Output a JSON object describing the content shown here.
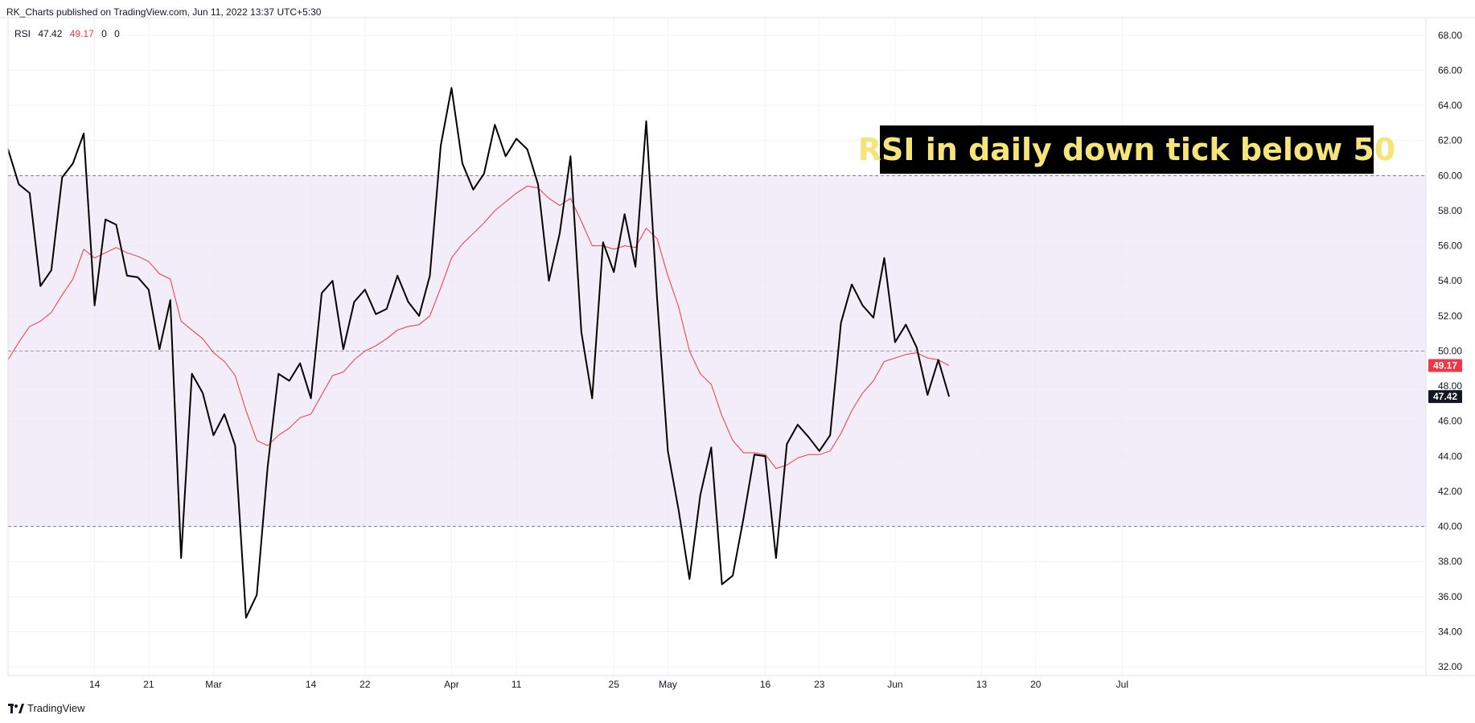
{
  "header": {
    "published": "RK_Charts published on TradingView.com, Jun 11, 2022 13:37 UTC+5:30"
  },
  "legend": {
    "name": "RSI",
    "rsi_value": "47.42",
    "ma_value": "49.17",
    "extra1": "0",
    "extra2": "0"
  },
  "annotation": {
    "text": "RSI in daily down tick below 50"
  },
  "footer": {
    "brand": "TradingView"
  },
  "colors": {
    "rsi_line": "#000000",
    "ma_line": "#f23645",
    "band_fill": "#ede7f6",
    "annotation_bg": "#000000",
    "annotation_text": "#f5e47a"
  },
  "chart_data": {
    "type": "line",
    "ylim": [
      31.5,
      69
    ],
    "y_ticks": [
      "32.00",
      "34.00",
      "36.00",
      "38.00",
      "40.00",
      "42.00",
      "44.00",
      "46.00",
      "48.00",
      "50.00",
      "52.00",
      "54.00",
      "56.00",
      "58.00",
      "60.00",
      "62.00",
      "64.00",
      "66.00",
      "68.00"
    ],
    "x_ticks": [
      {
        "label": "14",
        "index": 8
      },
      {
        "label": "21",
        "index": 13
      },
      {
        "label": "Mar",
        "index": 19
      },
      {
        "label": "14",
        "index": 28
      },
      {
        "label": "22",
        "index": 33
      },
      {
        "label": "Apr",
        "index": 41
      },
      {
        "label": "11",
        "index": 47
      },
      {
        "label": "25",
        "index": 56
      },
      {
        "label": "May",
        "index": 61
      },
      {
        "label": "16",
        "index": 70
      },
      {
        "label": "23",
        "index": 75
      },
      {
        "label": "Jun",
        "index": 82
      },
      {
        "label": "13",
        "index": 90
      },
      {
        "label": "20",
        "index": 95
      },
      {
        "label": "Jul",
        "index": 103
      }
    ],
    "band": {
      "lower": 40,
      "upper": 60,
      "middle": 50
    },
    "last_labels": {
      "rsi": "47.42",
      "ma": "49.17"
    },
    "series": [
      {
        "name": "RSI",
        "values": [
          61.5,
          59.5,
          59.0,
          53.7,
          54.6,
          59.9,
          60.7,
          62.4,
          52.6,
          57.5,
          57.2,
          54.3,
          54.2,
          53.5,
          50.1,
          52.9,
          38.2,
          48.7,
          47.6,
          45.2,
          46.4,
          44.6,
          34.8,
          36.1,
          43.4,
          48.7,
          48.3,
          49.3,
          47.3,
          53.3,
          54.0,
          50.1,
          52.8,
          53.5,
          52.1,
          52.4,
          54.3,
          52.8,
          52.0,
          54.3,
          61.7,
          65.0,
          60.7,
          59.2,
          60.1,
          62.9,
          61.1,
          62.1,
          61.5,
          59.5,
          54.0,
          56.7,
          61.1,
          51.1,
          47.3,
          56.2,
          54.5,
          57.8,
          54.8,
          63.1,
          53.0,
          44.3,
          40.9,
          37.0,
          41.8,
          44.5,
          36.7,
          37.2,
          40.5,
          44.1,
          44.0,
          38.2,
          44.7,
          45.8,
          45.1,
          44.3,
          45.2,
          51.6,
          53.8,
          52.6,
          51.9,
          55.3,
          50.5,
          51.5,
          50.2,
          47.5,
          49.5,
          47.4
        ]
      },
      {
        "name": "MA",
        "values": [
          49.5,
          50.5,
          51.4,
          51.7,
          52.2,
          53.2,
          54.1,
          55.8,
          55.3,
          55.6,
          55.9,
          55.6,
          55.4,
          55.1,
          54.4,
          54.1,
          51.7,
          51.2,
          50.7,
          49.9,
          49.4,
          48.6,
          46.6,
          44.9,
          44.6,
          45.2,
          45.6,
          46.2,
          46.4,
          47.5,
          48.6,
          48.8,
          49.5,
          50.0,
          50.3,
          50.7,
          51.2,
          51.4,
          51.5,
          52.0,
          53.6,
          55.3,
          56.1,
          56.7,
          57.3,
          58.0,
          58.5,
          59.0,
          59.4,
          59.3,
          58.7,
          58.3,
          58.7,
          57.4,
          56.0,
          56.0,
          55.8,
          56.0,
          55.9,
          57.0,
          56.4,
          54.3,
          52.5,
          50.0,
          48.7,
          48.1,
          46.3,
          44.9,
          44.2,
          44.2,
          44.1,
          43.3,
          43.5,
          43.9,
          44.1,
          44.1,
          44.3,
          45.3,
          46.6,
          47.6,
          48.3,
          49.4,
          49.6,
          49.8,
          49.9,
          49.6,
          49.5,
          49.17
        ]
      }
    ]
  }
}
